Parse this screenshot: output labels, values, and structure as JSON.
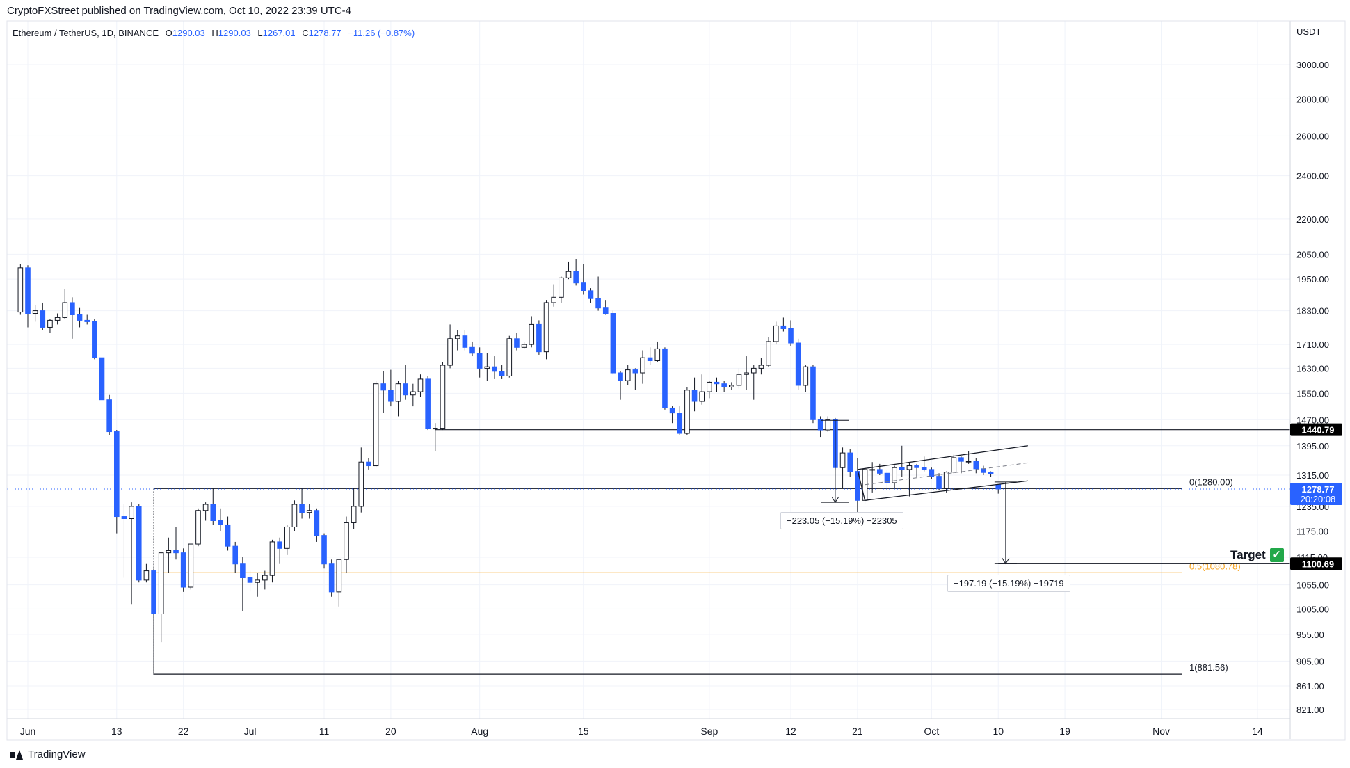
{
  "header": {
    "published_by": "CryptoFXStreet published on TradingView.com, Oct 10, 2022 23:39 UTC-4"
  },
  "legend": {
    "symbol": "Ethereum / TetherUS, 1D, BINANCE",
    "open_label": "O",
    "open": "1290.03",
    "high_label": "H",
    "high": "1290.03",
    "low_label": "L",
    "low": "1267.01",
    "close_label": "C",
    "close": "1278.77",
    "change": "−11.26 (−0.87%)"
  },
  "footer": {
    "brand": "TradingView"
  },
  "annotations": {
    "target_label": "Target",
    "target_check": "✓",
    "measure_1": "−223.05 (−15.19%) −22305",
    "measure_2": "−197.19 (−15.19%) −19719",
    "fib_0": "0(1280.00)",
    "fib_05": "0.5(1080.78)",
    "fib_1": "1(881.56)"
  },
  "colors": {
    "bull": "#ffffff",
    "bear": "#2962ff",
    "wick": "#131722",
    "grid": "#f0f3fa",
    "fib_05": "#f7a21b",
    "price_tag": "#2962ff",
    "level_tag": "#000000"
  },
  "chart_data": {
    "type": "candlestick",
    "symbol": "ETHUSDT",
    "timeframe": "1D",
    "y_unit": "USDT",
    "y_scale": "log",
    "y_ticks": [
      3000,
      2800,
      2600,
      2400,
      2200,
      2050,
      1950,
      1830,
      1710,
      1630,
      1550,
      1470,
      1395,
      1315,
      1235,
      1175,
      1115,
      1055,
      1005,
      955,
      905,
      861,
      821
    ],
    "x_ticks": [
      {
        "label": "Jun",
        "date": "2022-06-01"
      },
      {
        "label": "13",
        "date": "2022-06-13"
      },
      {
        "label": "22",
        "date": "2022-06-22"
      },
      {
        "label": "Jul",
        "date": "2022-07-01"
      },
      {
        "label": "11",
        "date": "2022-07-11"
      },
      {
        "label": "20",
        "date": "2022-07-20"
      },
      {
        "label": "Aug",
        "date": "2022-08-01"
      },
      {
        "label": "15",
        "date": "2022-08-15"
      },
      {
        "label": "Sep",
        "date": "2022-09-01"
      },
      {
        "label": "12",
        "date": "2022-09-12"
      },
      {
        "label": "21",
        "date": "2022-09-21"
      },
      {
        "label": "Oct",
        "date": "2022-10-01"
      },
      {
        "label": "10",
        "date": "2022-10-10"
      },
      {
        "label": "19",
        "date": "2022-10-19"
      },
      {
        "label": "Nov",
        "date": "2022-11-01"
      },
      {
        "label": "14",
        "date": "2022-11-14"
      }
    ],
    "candles": [
      {
        "d": "2022-05-31",
        "o": 1825,
        "h": 2010,
        "l": 1815,
        "c": 1995
      },
      {
        "d": "2022-06-01",
        "o": 1995,
        "h": 2005,
        "l": 1770,
        "c": 1820
      },
      {
        "d": "2022-06-02",
        "o": 1820,
        "h": 1850,
        "l": 1790,
        "c": 1830
      },
      {
        "d": "2022-06-03",
        "o": 1830,
        "h": 1860,
        "l": 1760,
        "c": 1770
      },
      {
        "d": "2022-06-04",
        "o": 1770,
        "h": 1800,
        "l": 1750,
        "c": 1795
      },
      {
        "d": "2022-06-05",
        "o": 1795,
        "h": 1820,
        "l": 1780,
        "c": 1805
      },
      {
        "d": "2022-06-06",
        "o": 1805,
        "h": 1910,
        "l": 1800,
        "c": 1860
      },
      {
        "d": "2022-06-07",
        "o": 1860,
        "h": 1880,
        "l": 1730,
        "c": 1815
      },
      {
        "d": "2022-06-08",
        "o": 1815,
        "h": 1840,
        "l": 1770,
        "c": 1795
      },
      {
        "d": "2022-06-09",
        "o": 1795,
        "h": 1815,
        "l": 1780,
        "c": 1790
      },
      {
        "d": "2022-06-10",
        "o": 1790,
        "h": 1800,
        "l": 1660,
        "c": 1665
      },
      {
        "d": "2022-06-11",
        "o": 1665,
        "h": 1670,
        "l": 1525,
        "c": 1530
      },
      {
        "d": "2022-06-12",
        "o": 1530,
        "h": 1545,
        "l": 1425,
        "c": 1435
      },
      {
        "d": "2022-06-13",
        "o": 1435,
        "h": 1440,
        "l": 1170,
        "c": 1210
      },
      {
        "d": "2022-06-14",
        "o": 1210,
        "h": 1240,
        "l": 1070,
        "c": 1205
      },
      {
        "d": "2022-06-15",
        "o": 1205,
        "h": 1245,
        "l": 1015,
        "c": 1235
      },
      {
        "d": "2022-06-16",
        "o": 1235,
        "h": 1240,
        "l": 1060,
        "c": 1065
      },
      {
        "d": "2022-06-17",
        "o": 1065,
        "h": 1100,
        "l": 1060,
        "c": 1085
      },
      {
        "d": "2022-06-18",
        "o": 1085,
        "h": 1090,
        "l": 880,
        "c": 995
      },
      {
        "d": "2022-06-19",
        "o": 995,
        "h": 1125,
        "l": 940,
        "c": 1125
      },
      {
        "d": "2022-06-20",
        "o": 1125,
        "h": 1160,
        "l": 1080,
        "c": 1130
      },
      {
        "d": "2022-06-21",
        "o": 1130,
        "h": 1185,
        "l": 1110,
        "c": 1125
      },
      {
        "d": "2022-06-22",
        "o": 1125,
        "h": 1135,
        "l": 1040,
        "c": 1050
      },
      {
        "d": "2022-06-23",
        "o": 1050,
        "h": 1145,
        "l": 1045,
        "c": 1145
      },
      {
        "d": "2022-06-24",
        "o": 1145,
        "h": 1230,
        "l": 1140,
        "c": 1225
      },
      {
        "d": "2022-06-25",
        "o": 1225,
        "h": 1245,
        "l": 1200,
        "c": 1240
      },
      {
        "d": "2022-06-26",
        "o": 1240,
        "h": 1280,
        "l": 1190,
        "c": 1200
      },
      {
        "d": "2022-06-27",
        "o": 1200,
        "h": 1230,
        "l": 1175,
        "c": 1190
      },
      {
        "d": "2022-06-28",
        "o": 1190,
        "h": 1210,
        "l": 1130,
        "c": 1140
      },
      {
        "d": "2022-06-29",
        "o": 1140,
        "h": 1150,
        "l": 1080,
        "c": 1100
      },
      {
        "d": "2022-06-30",
        "o": 1100,
        "h": 1115,
        "l": 1000,
        "c": 1070
      },
      {
        "d": "2022-07-01",
        "o": 1070,
        "h": 1085,
        "l": 1040,
        "c": 1060
      },
      {
        "d": "2022-07-02",
        "o": 1060,
        "h": 1080,
        "l": 1030,
        "c": 1065
      },
      {
        "d": "2022-07-03",
        "o": 1065,
        "h": 1085,
        "l": 1045,
        "c": 1075
      },
      {
        "d": "2022-07-04",
        "o": 1075,
        "h": 1155,
        "l": 1060,
        "c": 1150
      },
      {
        "d": "2022-07-05",
        "o": 1150,
        "h": 1160,
        "l": 1100,
        "c": 1135
      },
      {
        "d": "2022-07-06",
        "o": 1135,
        "h": 1190,
        "l": 1120,
        "c": 1185
      },
      {
        "d": "2022-07-07",
        "o": 1185,
        "h": 1250,
        "l": 1175,
        "c": 1240
      },
      {
        "d": "2022-07-08",
        "o": 1240,
        "h": 1280,
        "l": 1205,
        "c": 1220
      },
      {
        "d": "2022-07-09",
        "o": 1220,
        "h": 1240,
        "l": 1205,
        "c": 1225
      },
      {
        "d": "2022-07-10",
        "o": 1225,
        "h": 1230,
        "l": 1150,
        "c": 1165
      },
      {
        "d": "2022-07-11",
        "o": 1165,
        "h": 1170,
        "l": 1090,
        "c": 1100
      },
      {
        "d": "2022-07-12",
        "o": 1100,
        "h": 1110,
        "l": 1030,
        "c": 1040
      },
      {
        "d": "2022-07-13",
        "o": 1040,
        "h": 1110,
        "l": 1010,
        "c": 1110
      },
      {
        "d": "2022-07-14",
        "o": 1110,
        "h": 1210,
        "l": 1080,
        "c": 1195
      },
      {
        "d": "2022-07-15",
        "o": 1195,
        "h": 1280,
        "l": 1180,
        "c": 1235
      },
      {
        "d": "2022-07-16",
        "o": 1235,
        "h": 1390,
        "l": 1220,
        "c": 1350
      },
      {
        "d": "2022-07-17",
        "o": 1350,
        "h": 1360,
        "l": 1330,
        "c": 1340
      },
      {
        "d": "2022-07-18",
        "o": 1340,
        "h": 1590,
        "l": 1335,
        "c": 1580
      },
      {
        "d": "2022-07-19",
        "o": 1580,
        "h": 1620,
        "l": 1490,
        "c": 1560
      },
      {
        "d": "2022-07-20",
        "o": 1560,
        "h": 1625,
        "l": 1510,
        "c": 1525
      },
      {
        "d": "2022-07-21",
        "o": 1525,
        "h": 1590,
        "l": 1480,
        "c": 1580
      },
      {
        "d": "2022-07-22",
        "o": 1580,
        "h": 1640,
        "l": 1530,
        "c": 1545
      },
      {
        "d": "2022-07-23",
        "o": 1545,
        "h": 1580,
        "l": 1510,
        "c": 1555
      },
      {
        "d": "2022-07-24",
        "o": 1555,
        "h": 1610,
        "l": 1540,
        "c": 1595
      },
      {
        "d": "2022-07-25",
        "o": 1595,
        "h": 1605,
        "l": 1440,
        "c": 1445
      },
      {
        "d": "2022-07-26",
        "o": 1445,
        "h": 1460,
        "l": 1380,
        "c": 1445
      },
      {
        "d": "2022-07-27",
        "o": 1445,
        "h": 1650,
        "l": 1440,
        "c": 1640
      },
      {
        "d": "2022-07-28",
        "o": 1640,
        "h": 1780,
        "l": 1630,
        "c": 1730
      },
      {
        "d": "2022-07-29",
        "o": 1730,
        "h": 1760,
        "l": 1690,
        "c": 1740
      },
      {
        "d": "2022-07-30",
        "o": 1740,
        "h": 1760,
        "l": 1690,
        "c": 1700
      },
      {
        "d": "2022-07-31",
        "o": 1700,
        "h": 1720,
        "l": 1670,
        "c": 1680
      },
      {
        "d": "2022-08-01",
        "o": 1680,
        "h": 1700,
        "l": 1600,
        "c": 1630
      },
      {
        "d": "2022-08-02",
        "o": 1630,
        "h": 1680,
        "l": 1590,
        "c": 1635
      },
      {
        "d": "2022-08-03",
        "o": 1635,
        "h": 1670,
        "l": 1595,
        "c": 1620
      },
      {
        "d": "2022-08-04",
        "o": 1620,
        "h": 1640,
        "l": 1595,
        "c": 1605
      },
      {
        "d": "2022-08-05",
        "o": 1605,
        "h": 1740,
        "l": 1600,
        "c": 1730
      },
      {
        "d": "2022-08-06",
        "o": 1730,
        "h": 1750,
        "l": 1690,
        "c": 1700
      },
      {
        "d": "2022-08-07",
        "o": 1700,
        "h": 1720,
        "l": 1695,
        "c": 1710
      },
      {
        "d": "2022-08-08",
        "o": 1710,
        "h": 1810,
        "l": 1700,
        "c": 1780
      },
      {
        "d": "2022-08-09",
        "o": 1780,
        "h": 1795,
        "l": 1675,
        "c": 1685
      },
      {
        "d": "2022-08-10",
        "o": 1685,
        "h": 1870,
        "l": 1660,
        "c": 1860
      },
      {
        "d": "2022-08-11",
        "o": 1860,
        "h": 1930,
        "l": 1845,
        "c": 1880
      },
      {
        "d": "2022-08-12",
        "o": 1880,
        "h": 1960,
        "l": 1860,
        "c": 1955
      },
      {
        "d": "2022-08-13",
        "o": 1955,
        "h": 2020,
        "l": 1950,
        "c": 1980
      },
      {
        "d": "2022-08-14",
        "o": 1980,
        "h": 2030,
        "l": 1925,
        "c": 1935
      },
      {
        "d": "2022-08-15",
        "o": 1935,
        "h": 2010,
        "l": 1890,
        "c": 1905
      },
      {
        "d": "2022-08-16",
        "o": 1905,
        "h": 1915,
        "l": 1860,
        "c": 1875
      },
      {
        "d": "2022-08-17",
        "o": 1875,
        "h": 1960,
        "l": 1830,
        "c": 1840
      },
      {
        "d": "2022-08-18",
        "o": 1840,
        "h": 1870,
        "l": 1815,
        "c": 1820
      },
      {
        "d": "2022-08-19",
        "o": 1820,
        "h": 1830,
        "l": 1610,
        "c": 1615
      },
      {
        "d": "2022-08-20",
        "o": 1615,
        "h": 1620,
        "l": 1530,
        "c": 1590
      },
      {
        "d": "2022-08-21",
        "o": 1590,
        "h": 1640,
        "l": 1575,
        "c": 1625
      },
      {
        "d": "2022-08-22",
        "o": 1625,
        "h": 1630,
        "l": 1560,
        "c": 1615
      },
      {
        "d": "2022-08-23",
        "o": 1615,
        "h": 1690,
        "l": 1580,
        "c": 1665
      },
      {
        "d": "2022-08-24",
        "o": 1665,
        "h": 1700,
        "l": 1640,
        "c": 1655
      },
      {
        "d": "2022-08-25",
        "o": 1655,
        "h": 1720,
        "l": 1650,
        "c": 1695
      },
      {
        "d": "2022-08-26",
        "o": 1695,
        "h": 1700,
        "l": 1500,
        "c": 1505
      },
      {
        "d": "2022-08-27",
        "o": 1505,
        "h": 1510,
        "l": 1460,
        "c": 1490
      },
      {
        "d": "2022-08-28",
        "o": 1490,
        "h": 1510,
        "l": 1425,
        "c": 1430
      },
      {
        "d": "2022-08-29",
        "o": 1430,
        "h": 1570,
        "l": 1425,
        "c": 1560
      },
      {
        "d": "2022-08-30",
        "o": 1560,
        "h": 1600,
        "l": 1495,
        "c": 1525
      },
      {
        "d": "2022-08-31",
        "o": 1525,
        "h": 1610,
        "l": 1515,
        "c": 1555
      },
      {
        "d": "2022-09-01",
        "o": 1555,
        "h": 1590,
        "l": 1535,
        "c": 1585
      },
      {
        "d": "2022-09-02",
        "o": 1585,
        "h": 1600,
        "l": 1555,
        "c": 1580
      },
      {
        "d": "2022-09-03",
        "o": 1580,
        "h": 1590,
        "l": 1555,
        "c": 1570
      },
      {
        "d": "2022-09-04",
        "o": 1570,
        "h": 1585,
        "l": 1560,
        "c": 1575
      },
      {
        "d": "2022-09-05",
        "o": 1575,
        "h": 1630,
        "l": 1565,
        "c": 1610
      },
      {
        "d": "2022-09-06",
        "o": 1610,
        "h": 1670,
        "l": 1560,
        "c": 1615
      },
      {
        "d": "2022-09-07",
        "o": 1615,
        "h": 1640,
        "l": 1530,
        "c": 1630
      },
      {
        "d": "2022-09-08",
        "o": 1630,
        "h": 1665,
        "l": 1610,
        "c": 1640
      },
      {
        "d": "2022-09-09",
        "o": 1640,
        "h": 1735,
        "l": 1635,
        "c": 1720
      },
      {
        "d": "2022-09-10",
        "o": 1720,
        "h": 1790,
        "l": 1710,
        "c": 1775
      },
      {
        "d": "2022-09-11",
        "o": 1775,
        "h": 1805,
        "l": 1755,
        "c": 1765
      },
      {
        "d": "2022-09-12",
        "o": 1765,
        "h": 1795,
        "l": 1705,
        "c": 1715
      },
      {
        "d": "2022-09-13",
        "o": 1715,
        "h": 1730,
        "l": 1560,
        "c": 1575
      },
      {
        "d": "2022-09-14",
        "o": 1575,
        "h": 1640,
        "l": 1555,
        "c": 1635
      },
      {
        "d": "2022-09-15",
        "o": 1635,
        "h": 1640,
        "l": 1460,
        "c": 1470
      },
      {
        "d": "2022-09-16",
        "o": 1470,
        "h": 1480,
        "l": 1420,
        "c": 1440
      },
      {
        "d": "2022-09-17",
        "o": 1440,
        "h": 1480,
        "l": 1435,
        "c": 1470
      },
      {
        "d": "2022-09-18",
        "o": 1470,
        "h": 1475,
        "l": 1330,
        "c": 1335
      },
      {
        "d": "2022-09-19",
        "o": 1335,
        "h": 1390,
        "l": 1280,
        "c": 1375
      },
      {
        "d": "2022-09-20",
        "o": 1375,
        "h": 1385,
        "l": 1310,
        "c": 1325
      },
      {
        "d": "2022-09-21",
        "o": 1325,
        "h": 1360,
        "l": 1220,
        "c": 1250
      },
      {
        "d": "2022-09-22",
        "o": 1250,
        "h": 1335,
        "l": 1240,
        "c": 1330
      },
      {
        "d": "2022-09-23",
        "o": 1330,
        "h": 1350,
        "l": 1270,
        "c": 1330
      },
      {
        "d": "2022-09-24",
        "o": 1330,
        "h": 1345,
        "l": 1315,
        "c": 1320
      },
      {
        "d": "2022-09-25",
        "o": 1320,
        "h": 1330,
        "l": 1275,
        "c": 1295
      },
      {
        "d": "2022-09-26",
        "o": 1295,
        "h": 1340,
        "l": 1280,
        "c": 1335
      },
      {
        "d": "2022-09-27",
        "o": 1335,
        "h": 1395,
        "l": 1310,
        "c": 1330
      },
      {
        "d": "2022-09-28",
        "o": 1330,
        "h": 1350,
        "l": 1260,
        "c": 1340
      },
      {
        "d": "2022-09-29",
        "o": 1340,
        "h": 1345,
        "l": 1310,
        "c": 1335
      },
      {
        "d": "2022-09-30",
        "o": 1335,
        "h": 1365,
        "l": 1325,
        "c": 1330
      },
      {
        "d": "2022-10-01",
        "o": 1330,
        "h": 1335,
        "l": 1305,
        "c": 1312
      },
      {
        "d": "2022-10-02",
        "o": 1312,
        "h": 1320,
        "l": 1275,
        "c": 1280
      },
      {
        "d": "2022-10-03",
        "o": 1280,
        "h": 1325,
        "l": 1270,
        "c": 1323
      },
      {
        "d": "2022-10-04",
        "o": 1323,
        "h": 1370,
        "l": 1320,
        "c": 1362
      },
      {
        "d": "2022-10-05",
        "o": 1362,
        "h": 1365,
        "l": 1320,
        "c": 1352
      },
      {
        "d": "2022-10-06",
        "o": 1352,
        "h": 1380,
        "l": 1345,
        "c": 1352
      },
      {
        "d": "2022-10-07",
        "o": 1352,
        "h": 1360,
        "l": 1320,
        "c": 1332
      },
      {
        "d": "2022-10-08",
        "o": 1332,
        "h": 1340,
        "l": 1315,
        "c": 1322
      },
      {
        "d": "2022-10-09",
        "o": 1322,
        "h": 1325,
        "l": 1310,
        "c": 1318
      },
      {
        "d": "2022-10-10",
        "o": 1290.03,
        "h": 1290.03,
        "l": 1267.01,
        "c": 1278.77
      }
    ],
    "levels": [
      {
        "label": "1440.79",
        "value": 1440.79
      },
      {
        "label": "1100.69",
        "value": 1100.69
      },
      {
        "label": "1278.77",
        "value": 1278.77,
        "timer": "20:20:08"
      }
    ],
    "fibonacci": [
      {
        "label": "0(1280.00)",
        "value": 1280.0
      },
      {
        "label": "0.5(1080.78)",
        "value": 1080.78
      },
      {
        "label": "1(881.56)",
        "value": 881.56
      }
    ],
    "channel": {
      "upper": [
        {
          "d": "2022-09-21",
          "v": 1330
        },
        {
          "d": "2022-10-14",
          "v": 1395
        }
      ],
      "lower": [
        {
          "d": "2022-09-22",
          "v": 1250
        },
        {
          "d": "2022-10-14",
          "v": 1300
        }
      ],
      "mid": [
        {
          "d": "2022-09-22",
          "v": 1290
        },
        {
          "d": "2022-10-14",
          "v": 1348
        }
      ]
    },
    "measures": [
      {
        "label": "−223.05 (−15.19%) −22305",
        "from": 1468,
        "to": 1245,
        "d": "2022-09-18"
      },
      {
        "label": "−197.19 (−15.19%) −19719",
        "from": 1297,
        "to": 1100.69,
        "d": "2022-10-11"
      }
    ]
  }
}
